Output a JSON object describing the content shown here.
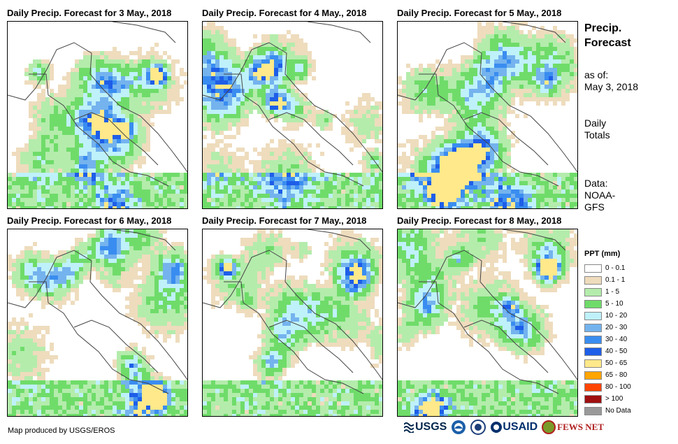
{
  "panels": [
    {
      "title": "Daily Precip. Forecast for 3 May., 2018",
      "pattern": 1
    },
    {
      "title": "Daily Precip. Forecast for 4 May., 2018",
      "pattern": 2
    },
    {
      "title": "Daily Precip. Forecast for 5 May., 2018",
      "pattern": 3
    },
    {
      "title": "Daily Precip. Forecast for 6 May., 2018",
      "pattern": 4
    },
    {
      "title": "Daily Precip. Forecast for 7 May., 2018",
      "pattern": 5
    },
    {
      "title": "Daily Precip. Forecast for 8 May., 2018",
      "pattern": 6
    }
  ],
  "sidebar": {
    "title_line1": "Precip.",
    "title_line2": "Forecast",
    "asof_line1": "as of:",
    "asof_line2": "May 3, 2018",
    "totals_line1": "Daily",
    "totals_line2": "Totals",
    "data_line1": "Data:",
    "data_line2": "NOAA-",
    "data_line3": "GFS"
  },
  "legend": {
    "title": "PPT (mm)",
    "items": [
      {
        "label": "0 - 0.1",
        "color": "#ffffff"
      },
      {
        "label": "0.1 - 1",
        "color": "#eedcbd"
      },
      {
        "label": "1 - 5",
        "color": "#b4ecac"
      },
      {
        "label": "5 - 10",
        "color": "#6fdc6a"
      },
      {
        "label": "10 - 20",
        "color": "#bff1fa"
      },
      {
        "label": "20 - 30",
        "color": "#74b3ee"
      },
      {
        "label": "30 - 40",
        "color": "#3a8df0"
      },
      {
        "label": "40 - 50",
        "color": "#1e5ee8"
      },
      {
        "label": "50 - 65",
        "color": "#ffe98a"
      },
      {
        "label": "65 - 80",
        "color": "#ffa500"
      },
      {
        "label": "80 - 100",
        "color": "#ff4400"
      },
      {
        "label": "> 100",
        "color": "#a01010"
      },
      {
        "label": "No Data",
        "color": "#999999"
      }
    ]
  },
  "footer": {
    "credit": "Map produced by USGS/EROS"
  },
  "logos": {
    "usgs": "USGS",
    "usaid": "USAID",
    "fewsnet": "FEWS NET"
  }
}
